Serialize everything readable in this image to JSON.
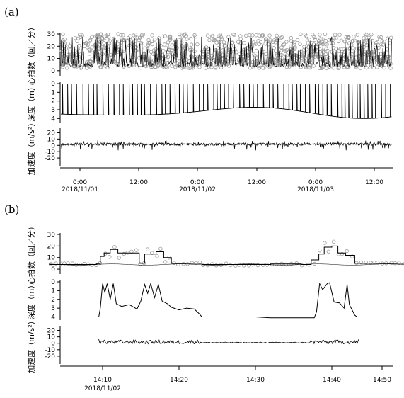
{
  "chart_data": [
    {
      "panel_label": "(a)",
      "type": "line",
      "x_tick_labels": [
        "0:00",
        "12:00",
        "0:00",
        "12:00",
        "0:00",
        "12:00"
      ],
      "x_date_labels": [
        "2018/11/01",
        "2018/11/02",
        "2018/11/03"
      ],
      "subplots": [
        {
          "ylabel": "心拍数（回／分）",
          "yticks": [
            "30",
            "20",
            "10",
            "0"
          ],
          "ylim": [
            -3,
            30
          ],
          "series": [
            {
              "type": "scatter",
              "marker": "open-circle"
            },
            {
              "type": "line"
            }
          ]
        },
        {
          "ylabel": "深度（m）",
          "yticks": [
            "0",
            "1",
            "2",
            "3",
            "4"
          ],
          "ylim": [
            0,
            4.3
          ],
          "inverted": true,
          "series": [
            {
              "type": "line"
            }
          ]
        },
        {
          "ylabel": "加速度（m/s²）",
          "yticks": [
            "20",
            "10",
            "0",
            "-10",
            "-20"
          ],
          "ylim": [
            -30,
            25
          ],
          "series": [
            {
              "type": "line"
            }
          ]
        }
      ]
    },
    {
      "panel_label": "(b)",
      "type": "line",
      "x_tick_labels": [
        "14:10",
        "14:20",
        "14:30",
        "14:40",
        "14:50"
      ],
      "x_date_labels": [
        "2018/11/02"
      ],
      "subplots": [
        {
          "ylabel": "心拍数（回／分）",
          "yticks": [
            "30",
            "20",
            "10",
            "0"
          ],
          "ylim": [
            -3,
            30
          ],
          "series": [
            {
              "type": "scatter",
              "marker": "open-circle"
            },
            {
              "type": "step"
            }
          ]
        },
        {
          "ylabel": "深度（m）",
          "yticks": [
            "0",
            "1",
            "2",
            "3",
            "4"
          ],
          "ylim": [
            0,
            4.2
          ],
          "inverted": true,
          "series": [
            {
              "type": "line"
            }
          ]
        },
        {
          "ylabel": "加速度（m/s²）",
          "yticks": [
            "20",
            "10",
            "0",
            "-10",
            "-20"
          ],
          "ylim": [
            -30,
            25
          ],
          "series": [
            {
              "type": "line"
            }
          ]
        }
      ]
    }
  ]
}
